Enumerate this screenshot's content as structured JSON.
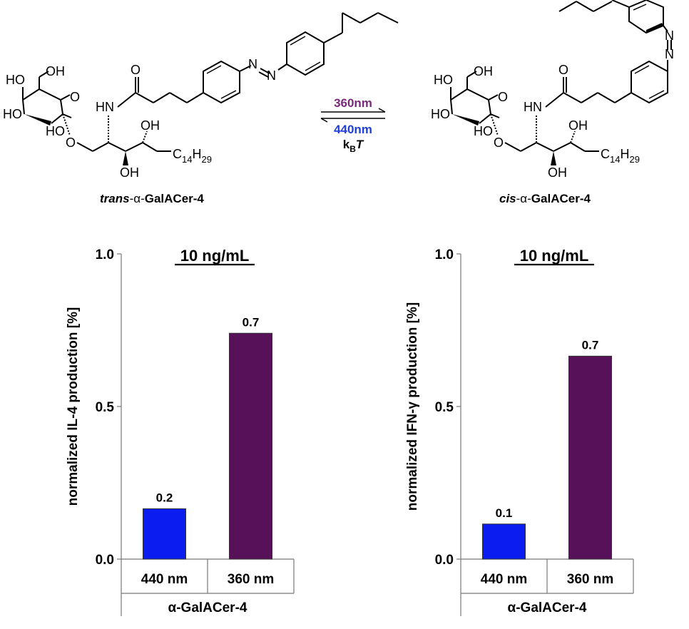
{
  "scheme": {
    "forward_label": "360nm",
    "reverse_label": "440nm",
    "thermal_label_base": "k",
    "thermal_label_sub": "B",
    "thermal_label_T": "T",
    "forward_color": "#7a2a7a",
    "reverse_color": "#1f3fd6",
    "trans": {
      "prefix": "trans",
      "greek": "-α-",
      "name": "GalACer-4",
      "chain_base": "C",
      "chain_sub1": "14",
      "chain_mid": "H",
      "chain_sub2": "29",
      "oh": "OH",
      "ho": "HO",
      "hn": "HN",
      "o": "O",
      "n": "N"
    },
    "cis": {
      "prefix": "cis",
      "greek": "-α-",
      "name": "GalACer-4",
      "chain_base": "C",
      "chain_sub1": "14",
      "chain_mid": "H",
      "chain_sub2": "29",
      "oh": "OH",
      "ho": "HO",
      "hn": "HN",
      "o": "O",
      "n": "N"
    }
  },
  "colors": {
    "bar_440": "#0a1cf0",
    "bar_360": "#571159"
  },
  "chart_data": [
    {
      "type": "bar",
      "title": "10 ng/mL",
      "ylabel": "normalized IL-4 production [%]",
      "xlabel": "α-GalACer-4",
      "categories": [
        "440 nm",
        "360 nm"
      ],
      "values": [
        0.165,
        0.74
      ],
      "data_labels": [
        "0.2",
        "0.7"
      ],
      "ylim": [
        0,
        1
      ],
      "yticks": [
        "0.0",
        "0.5",
        "1.0"
      ],
      "grid": false
    },
    {
      "type": "bar",
      "title": "10 ng/mL",
      "ylabel": "normalized IFN-γ production [%]",
      "xlabel": "α-GalACer-4",
      "categories": [
        "440 nm",
        "360 nm"
      ],
      "values": [
        0.115,
        0.665
      ],
      "data_labels": [
        "0.1",
        "0.7"
      ],
      "ylim": [
        0,
        1
      ],
      "yticks": [
        "0.0",
        "0.5",
        "1.0"
      ],
      "grid": false
    }
  ]
}
